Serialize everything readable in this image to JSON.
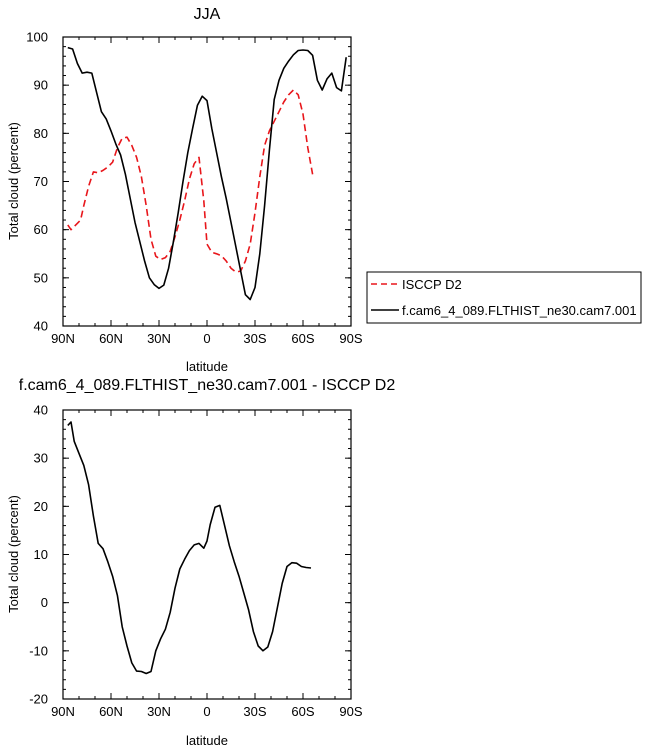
{
  "chart_data": [
    {
      "type": "line",
      "title": "JJA",
      "xlabel": "latitude",
      "ylabel": "Total cloud (percent)",
      "xlim": [
        90,
        -90
      ],
      "ylim": [
        40,
        100
      ],
      "x_ticks": [
        90,
        60,
        30,
        0,
        -30,
        -60,
        -90
      ],
      "x_tick_labels": [
        "90N",
        "60N",
        "30N",
        "0",
        "30S",
        "60S",
        "90S"
      ],
      "y_ticks": [
        40,
        50,
        60,
        70,
        80,
        90,
        100
      ],
      "y_tick_labels": [
        "40",
        "50",
        "60",
        "70",
        "80",
        "90",
        "100"
      ],
      "legend_position": "right",
      "series": [
        {
          "name": "ISCCP D2",
          "color": "#e8161b",
          "dash": "dashed",
          "x": [
            87,
            85,
            82,
            79,
            77,
            74,
            71,
            68,
            65,
            62,
            59,
            56,
            53,
            50,
            47,
            44,
            41,
            38,
            35,
            32,
            29,
            26,
            23,
            20,
            17,
            14,
            11,
            8,
            5,
            2,
            0,
            -3,
            -6,
            -9,
            -12,
            -15,
            -18,
            -21,
            -24,
            -27,
            -30,
            -33,
            -36,
            -39,
            -42,
            -45,
            -48,
            -51,
            -54,
            -57,
            -60,
            -63,
            -66
          ],
          "y": [
            61,
            60,
            61,
            62,
            65,
            69,
            72,
            71.8,
            72.3,
            73,
            74,
            77,
            79,
            79.2,
            77.5,
            75,
            71,
            65,
            58,
            54.5,
            53.8,
            54.2,
            55.5,
            58.5,
            62,
            66,
            70.5,
            73.7,
            75,
            66,
            57,
            55.3,
            55,
            54.6,
            53.5,
            52,
            51.2,
            51.4,
            53.5,
            57,
            63.5,
            71,
            77.5,
            80.5,
            82.5,
            84.5,
            86.5,
            88,
            89,
            88,
            84,
            77,
            71.5
          ]
        },
        {
          "name": "f.cam6_4_089.FLTHIST_ne30.cam7.001",
          "color": "#000000",
          "dash": "solid",
          "x": [
            87,
            84,
            81,
            78,
            75,
            72,
            69,
            66,
            63,
            60,
            57,
            54,
            51,
            48,
            45,
            42,
            39,
            36,
            33,
            30,
            27,
            24,
            21,
            18,
            15,
            12,
            9,
            6,
            3,
            0,
            -3,
            -6,
            -9,
            -12,
            -15,
            -18,
            -21,
            -24,
            -27,
            -30,
            -33,
            -36,
            -39,
            -42,
            -45,
            -48,
            -51,
            -54,
            -57,
            -60,
            -63,
            -66,
            -69,
            -72,
            -75,
            -78,
            -81,
            -84,
            -87
          ],
          "y": [
            97.8,
            97.5,
            94.5,
            92.5,
            92.7,
            92.5,
            88.5,
            84.5,
            83,
            80.5,
            77.8,
            75.5,
            71.5,
            66.5,
            61.5,
            57.5,
            53.5,
            50,
            48.6,
            47.8,
            48.5,
            52,
            57.5,
            63.5,
            70,
            76,
            81,
            85.8,
            87.7,
            86.8,
            81,
            76,
            71,
            66.5,
            61.5,
            56.5,
            51.5,
            46.5,
            45.5,
            48,
            55,
            65,
            76.5,
            87,
            91,
            93.5,
            95,
            96.3,
            97.2,
            97.3,
            97.2,
            96.2,
            91,
            89,
            91.3,
            92.5,
            89.5,
            88.8,
            95.8
          ]
        }
      ]
    },
    {
      "type": "line",
      "title": "f.cam6_4_089.FLTHIST_ne30.cam7.001 - ISCCP D2",
      "xlabel": "latitude",
      "ylabel": "Total cloud (percent)",
      "xlim": [
        90,
        -90
      ],
      "ylim": [
        -20,
        40
      ],
      "x_ticks": [
        90,
        60,
        30,
        0,
        -30,
        -60,
        -90
      ],
      "x_tick_labels": [
        "90N",
        "60N",
        "30N",
        "0",
        "30S",
        "60S",
        "90S"
      ],
      "y_ticks": [
        -20,
        -10,
        0,
        10,
        20,
        30,
        40
      ],
      "y_tick_labels": [
        "-20",
        "-10",
        "0",
        "10",
        "20",
        "30",
        "40"
      ],
      "series": [
        {
          "color": "#000000",
          "dash": "solid",
          "x": [
            87,
            85,
            83,
            80,
            77,
            74,
            71,
            68,
            65,
            62,
            59,
            56,
            53,
            50,
            47,
            44,
            41,
            38,
            35,
            32,
            29,
            26,
            23,
            20,
            17,
            14,
            11,
            8,
            5,
            2,
            0,
            -2,
            -5,
            -8,
            -11,
            -14,
            -17,
            -20,
            -23,
            -26,
            -29,
            -32,
            -35,
            -38,
            -41,
            -44,
            -47,
            -50,
            -53,
            -56,
            -59,
            -62,
            -65
          ],
          "y": [
            36.8,
            37.5,
            33.5,
            31,
            28.5,
            24.5,
            18,
            12.3,
            11.2,
            8.5,
            5.5,
            1.5,
            -5,
            -9,
            -12.5,
            -14.2,
            -14.3,
            -14.7,
            -14.3,
            -10,
            -7.5,
            -5.5,
            -2,
            3,
            7,
            9,
            10.8,
            12,
            12.3,
            11.3,
            12.8,
            16.2,
            19.8,
            20.2,
            16,
            11.8,
            8.5,
            5.5,
            2,
            -1.5,
            -6,
            -9,
            -10,
            -9.2,
            -6,
            -1,
            4,
            7.5,
            8.3,
            8.2,
            7.5,
            7.3,
            7.2
          ]
        }
      ]
    }
  ]
}
